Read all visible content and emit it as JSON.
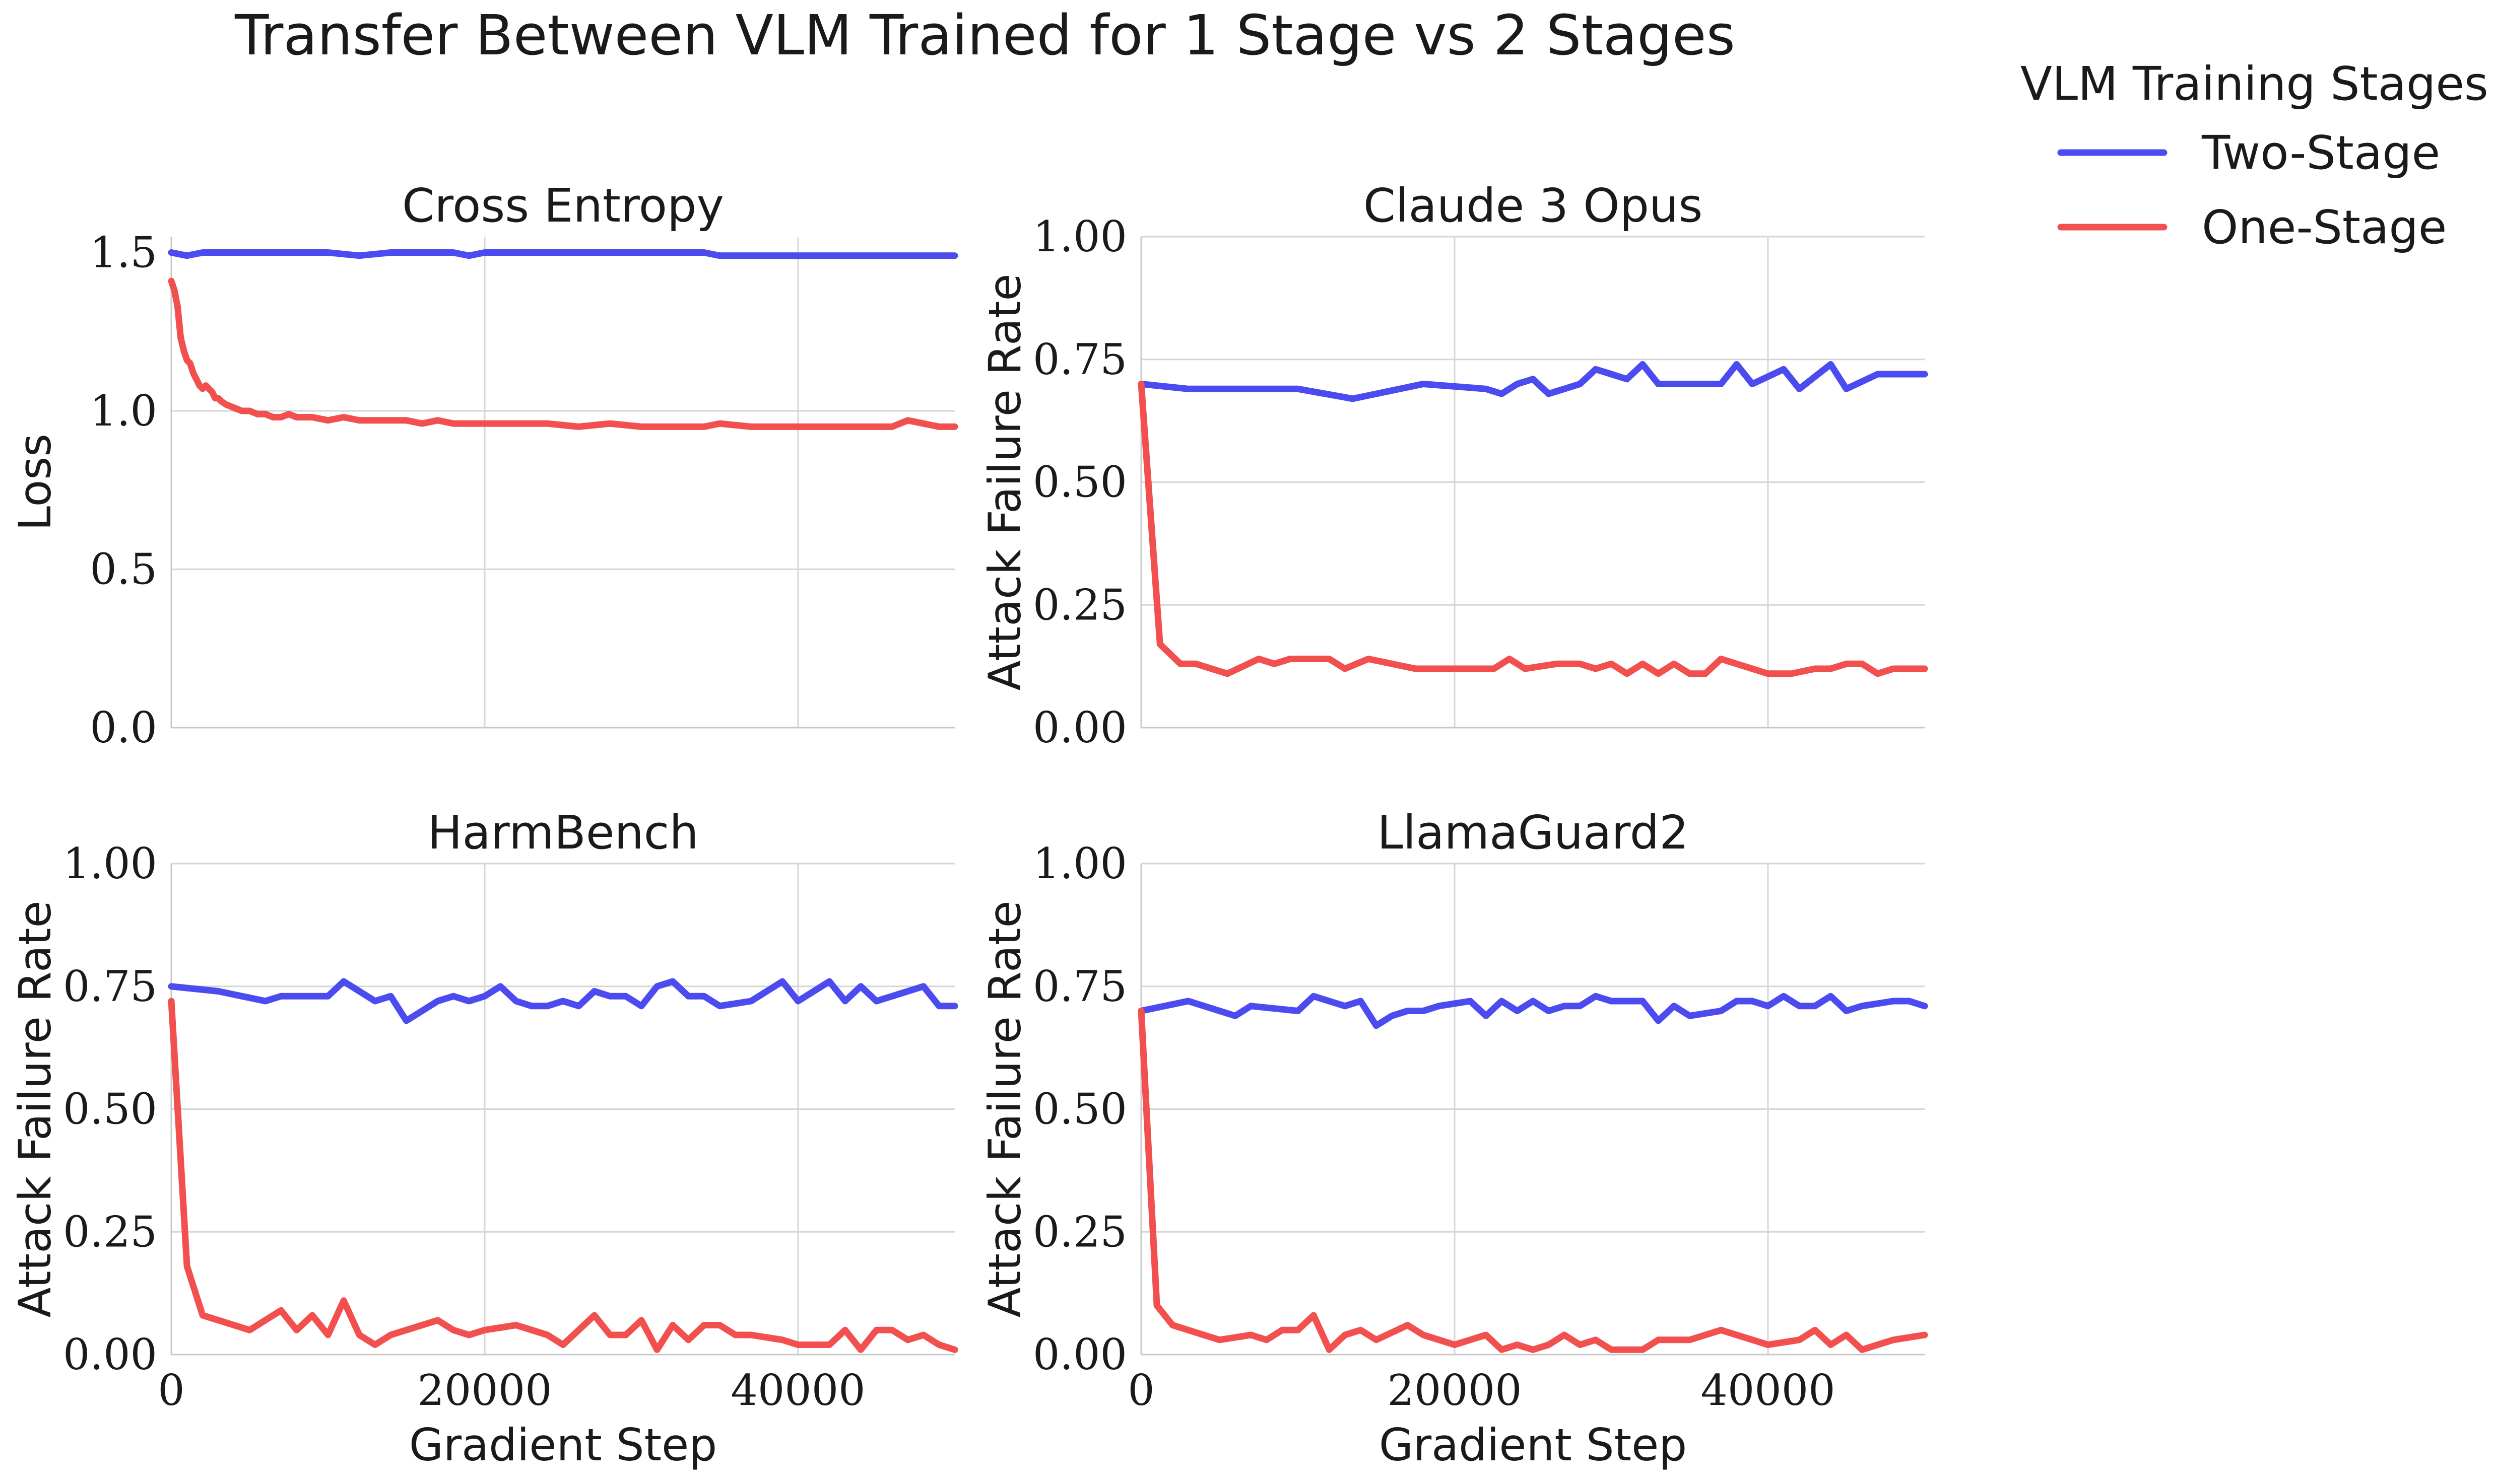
{
  "figure": {
    "title": "Transfer Between VLM Trained for 1 Stage vs 2 Stages",
    "legend": {
      "title": "VLM Training Stages",
      "placement": "top-right outside",
      "entries": [
        {
          "label": "Two-Stage",
          "color": "#4b4bf0"
        },
        {
          "label": "One-Stage",
          "color": "#f24f4f"
        }
      ]
    }
  },
  "chart_data": [
    {
      "type": "line",
      "title": "Cross Entropy",
      "xlabel": "",
      "ylabel": "Loss",
      "xlim": [
        0,
        50000
      ],
      "ylim": [
        0,
        1.55
      ],
      "xticks": [
        0,
        20000,
        40000
      ],
      "xtick_labels": [],
      "yticks": [
        0.0,
        0.5,
        1.0,
        1.5
      ],
      "ytick_labels": [
        "0.0",
        "0.5",
        "1.0",
        "1.5"
      ],
      "grid": true,
      "series": [
        {
          "name": "Two-Stage",
          "color": "#4b4bf0",
          "x": [
            0,
            1000,
            2000,
            3000,
            5000,
            7000,
            9000,
            10000,
            12000,
            14000,
            16000,
            18000,
            19000,
            20000,
            22000,
            24000,
            26000,
            27000,
            28000,
            30000,
            32000,
            34000,
            35000,
            38000,
            40000,
            42000,
            44000,
            46000,
            48000,
            50000
          ],
          "y": [
            1.5,
            1.49,
            1.5,
            1.5,
            1.5,
            1.5,
            1.5,
            1.5,
            1.49,
            1.5,
            1.5,
            1.5,
            1.49,
            1.5,
            1.5,
            1.5,
            1.5,
            1.5,
            1.5,
            1.5,
            1.5,
            1.5,
            1.49,
            1.49,
            1.49,
            1.49,
            1.49,
            1.49,
            1.49,
            1.49
          ]
        },
        {
          "name": "One-Stage",
          "color": "#f24f4f",
          "x": [
            0,
            200,
            400,
            600,
            800,
            1000,
            1200,
            1400,
            1600,
            1800,
            2000,
            2200,
            2400,
            2600,
            2800,
            3000,
            3200,
            3500,
            4000,
            4500,
            5000,
            5500,
            6000,
            6500,
            7000,
            7500,
            8000,
            9000,
            10000,
            11000,
            12000,
            13000,
            15000,
            16000,
            17000,
            18000,
            20000,
            22000,
            24000,
            26000,
            28000,
            30000,
            32000,
            34000,
            35000,
            37000,
            40000,
            42000,
            44000,
            45000,
            46000,
            47000,
            48000,
            49000,
            50000
          ],
          "y": [
            1.41,
            1.38,
            1.33,
            1.23,
            1.19,
            1.16,
            1.15,
            1.12,
            1.1,
            1.08,
            1.07,
            1.08,
            1.07,
            1.06,
            1.04,
            1.04,
            1.03,
            1.02,
            1.01,
            1.0,
            1.0,
            0.99,
            0.99,
            0.98,
            0.98,
            0.99,
            0.98,
            0.98,
            0.97,
            0.98,
            0.97,
            0.97,
            0.97,
            0.96,
            0.97,
            0.96,
            0.96,
            0.96,
            0.96,
            0.95,
            0.96,
            0.95,
            0.95,
            0.95,
            0.96,
            0.95,
            0.95,
            0.95,
            0.95,
            0.95,
            0.95,
            0.97,
            0.96,
            0.95,
            0.95
          ]
        }
      ]
    },
    {
      "type": "line",
      "title": "Claude 3 Opus",
      "xlabel": "",
      "ylabel": "Attack Failure Rate",
      "xlim": [
        0,
        50000
      ],
      "ylim": [
        0,
        1.0
      ],
      "xticks": [
        0,
        20000,
        40000
      ],
      "xtick_labels": [],
      "yticks": [
        0.0,
        0.25,
        0.5,
        0.75,
        1.0
      ],
      "ytick_labels": [
        "0.00",
        "0.25",
        "0.50",
        "0.75",
        "1.00"
      ],
      "grid": true,
      "series": [
        {
          "name": "Two-Stage",
          "color": "#4b4bf0",
          "x": [
            0,
            3000,
            6500,
            7500,
            10000,
            13500,
            18000,
            22000,
            23000,
            24000,
            25000,
            26000,
            28000,
            29000,
            30000,
            31000,
            32000,
            33000,
            34000,
            35000,
            37000,
            38000,
            39000,
            41000,
            42000,
            44000,
            45000,
            47000,
            48000,
            49000,
            50000
          ],
          "y": [
            0.7,
            0.69,
            0.69,
            0.69,
            0.69,
            0.67,
            0.7,
            0.69,
            0.68,
            0.7,
            0.71,
            0.68,
            0.7,
            0.73,
            0.72,
            0.71,
            0.74,
            0.7,
            0.7,
            0.7,
            0.7,
            0.74,
            0.7,
            0.73,
            0.69,
            0.74,
            0.69,
            0.72,
            0.72,
            0.72,
            0.72
          ]
        },
        {
          "name": "One-Stage",
          "color": "#f24f4f",
          "x": [
            0,
            1200,
            2500,
            3500,
            5500,
            7500,
            8500,
            9500,
            11500,
            12000,
            13000,
            14500,
            17500,
            20000,
            22500,
            23500,
            24500,
            26500,
            28000,
            29000,
            30000,
            31000,
            32000,
            33000,
            34000,
            35000,
            36000,
            37000,
            38000,
            40000,
            41500,
            43000,
            44000,
            45000,
            46000,
            47000,
            48000,
            50000
          ],
          "y": [
            0.7,
            0.17,
            0.13,
            0.13,
            0.11,
            0.14,
            0.13,
            0.14,
            0.14,
            0.14,
            0.12,
            0.14,
            0.12,
            0.12,
            0.12,
            0.14,
            0.12,
            0.13,
            0.13,
            0.12,
            0.13,
            0.11,
            0.13,
            0.11,
            0.13,
            0.11,
            0.11,
            0.14,
            0.13,
            0.11,
            0.11,
            0.12,
            0.12,
            0.13,
            0.13,
            0.11,
            0.12,
            0.12
          ]
        }
      ]
    },
    {
      "type": "line",
      "title": "HarmBench",
      "xlabel": "Gradient Step",
      "ylabel": "Attack Failure Rate",
      "xlim": [
        0,
        50000
      ],
      "ylim": [
        0,
        1.0
      ],
      "xticks": [
        0,
        20000,
        40000
      ],
      "xtick_labels": [
        "0",
        "20000",
        "40000"
      ],
      "yticks": [
        0.0,
        0.25,
        0.5,
        0.75,
        1.0
      ],
      "ytick_labels": [
        "0.00",
        "0.25",
        "0.50",
        "0.75",
        "1.00"
      ],
      "grid": true,
      "series": [
        {
          "name": "Two-Stage",
          "color": "#4b4bf0",
          "x": [
            0,
            3000,
            6000,
            7000,
            10000,
            11000,
            12000,
            13000,
            14000,
            15000,
            17000,
            18000,
            19000,
            20000,
            21000,
            22000,
            23000,
            24000,
            25000,
            26000,
            27000,
            28000,
            29000,
            30000,
            31000,
            32000,
            33000,
            34000,
            35000,
            37000,
            39000,
            40000,
            42000,
            43000,
            44000,
            45000,
            46000,
            48000,
            49000,
            50000
          ],
          "y": [
            0.75,
            0.74,
            0.72,
            0.73,
            0.73,
            0.76,
            0.74,
            0.72,
            0.73,
            0.68,
            0.72,
            0.73,
            0.72,
            0.73,
            0.75,
            0.72,
            0.71,
            0.71,
            0.72,
            0.71,
            0.74,
            0.73,
            0.73,
            0.71,
            0.75,
            0.76,
            0.73,
            0.73,
            0.71,
            0.72,
            0.76,
            0.72,
            0.76,
            0.72,
            0.75,
            0.72,
            0.73,
            0.75,
            0.71,
            0.71
          ]
        },
        {
          "name": "One-Stage",
          "color": "#f24f4f",
          "x": [
            0,
            1000,
            2000,
            5000,
            7000,
            8000,
            9000,
            10000,
            11000,
            12000,
            13000,
            14000,
            17000,
            18000,
            19000,
            20000,
            22000,
            24000,
            25000,
            27000,
            28000,
            29000,
            30000,
            31000,
            32000,
            33000,
            34000,
            35000,
            36000,
            37000,
            39000,
            40000,
            42000,
            43000,
            44000,
            45000,
            46000,
            47000,
            48000,
            49000,
            50000
          ],
          "y": [
            0.72,
            0.18,
            0.08,
            0.05,
            0.09,
            0.05,
            0.08,
            0.04,
            0.11,
            0.04,
            0.02,
            0.04,
            0.07,
            0.05,
            0.04,
            0.05,
            0.06,
            0.04,
            0.02,
            0.08,
            0.04,
            0.04,
            0.07,
            0.01,
            0.06,
            0.03,
            0.06,
            0.06,
            0.04,
            0.04,
            0.03,
            0.02,
            0.02,
            0.05,
            0.01,
            0.05,
            0.05,
            0.03,
            0.04,
            0.02,
            0.01
          ]
        }
      ]
    },
    {
      "type": "line",
      "title": "LlamaGuard2",
      "xlabel": "Gradient Step",
      "ylabel": "Attack Failure Rate",
      "xlim": [
        0,
        50000
      ],
      "ylim": [
        0,
        1.0
      ],
      "xticks": [
        0,
        20000,
        40000
      ],
      "xtick_labels": [
        "0",
        "20000",
        "40000"
      ],
      "yticks": [
        0.0,
        0.25,
        0.5,
        0.75,
        1.0
      ],
      "ytick_labels": [
        "0.00",
        "0.25",
        "0.50",
        "0.75",
        "1.00"
      ],
      "grid": true,
      "series": [
        {
          "name": "Two-Stage",
          "color": "#4b4bf0",
          "x": [
            0,
            3000,
            6000,
            7000,
            10000,
            11000,
            13000,
            14000,
            15000,
            16000,
            17000,
            18000,
            19000,
            21000,
            22000,
            23000,
            24000,
            25000,
            26000,
            27000,
            28000,
            29000,
            30000,
            32000,
            33000,
            34000,
            35000,
            37000,
            38000,
            39000,
            40000,
            41000,
            42000,
            43000,
            44000,
            45000,
            46000,
            48000,
            49000,
            50000
          ],
          "y": [
            0.7,
            0.72,
            0.69,
            0.71,
            0.7,
            0.73,
            0.71,
            0.72,
            0.67,
            0.69,
            0.7,
            0.7,
            0.71,
            0.72,
            0.69,
            0.72,
            0.7,
            0.72,
            0.7,
            0.71,
            0.71,
            0.73,
            0.72,
            0.72,
            0.68,
            0.71,
            0.69,
            0.7,
            0.72,
            0.72,
            0.71,
            0.73,
            0.71,
            0.71,
            0.73,
            0.7,
            0.71,
            0.72,
            0.72,
            0.71
          ]
        },
        {
          "name": "One-Stage",
          "color": "#f24f4f",
          "x": [
            0,
            1000,
            2000,
            3000,
            5000,
            7000,
            8000,
            9000,
            10000,
            11000,
            12000,
            13000,
            14000,
            15000,
            17000,
            18000,
            20000,
            22000,
            23000,
            24000,
            25000,
            26000,
            27000,
            28000,
            29000,
            30000,
            31000,
            32000,
            33000,
            35000,
            37000,
            40000,
            42000,
            43000,
            44000,
            45000,
            46000,
            47000,
            48000,
            50000
          ],
          "y": [
            0.7,
            0.1,
            0.06,
            0.05,
            0.03,
            0.04,
            0.03,
            0.05,
            0.05,
            0.08,
            0.01,
            0.04,
            0.05,
            0.03,
            0.06,
            0.04,
            0.02,
            0.04,
            0.01,
            0.02,
            0.01,
            0.02,
            0.04,
            0.02,
            0.03,
            0.01,
            0.01,
            0.01,
            0.03,
            0.03,
            0.05,
            0.02,
            0.03,
            0.05,
            0.02,
            0.04,
            0.01,
            0.02,
            0.03,
            0.04
          ]
        }
      ]
    }
  ]
}
